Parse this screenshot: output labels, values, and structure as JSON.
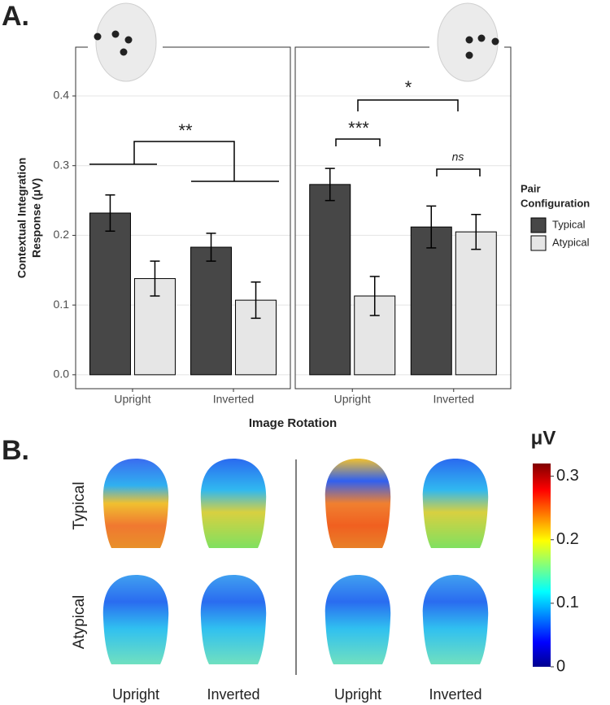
{
  "panel_a": {
    "label": "A.",
    "xlabel": "Image Rotation",
    "ylabel": [
      "Contextual Integration",
      "Response (μV)"
    ],
    "legend_title": [
      "Pair",
      "Configuration"
    ]
  },
  "chart_data": [
    {
      "type": "bar",
      "categories": [
        "Upright",
        "Inverted"
      ],
      "series": [
        {
          "name": "Typical",
          "color": "#474747",
          "values": [
            0.232,
            0.183
          ],
          "errors": [
            0.026,
            0.02
          ]
        },
        {
          "name": "Atypical",
          "color": "#e6e6e6",
          "values": [
            0.138,
            0.107
          ],
          "errors": [
            0.025,
            0.026
          ]
        }
      ],
      "ylim": [
        -0.02,
        0.47
      ],
      "yticks": [
        {
          "value": 0,
          "label": "0.0"
        },
        0.1,
        0.2,
        0.3,
        0.4
      ],
      "grid": true,
      "annotations": [
        "**"
      ]
    },
    {
      "type": "bar",
      "categories": [
        "Upright",
        "Inverted"
      ],
      "series": [
        {
          "name": "Typical",
          "color": "#474747",
          "values": [
            0.273,
            0.212
          ],
          "errors": [
            0.023,
            0.03
          ]
        },
        {
          "name": "Atypical",
          "color": "#e6e6e6",
          "values": [
            0.113,
            0.205
          ],
          "errors": [
            0.028,
            0.025
          ]
        }
      ],
      "ylim": [
        -0.02,
        0.47
      ],
      "grid": true,
      "annotations": [
        "***",
        "*",
        "ns"
      ]
    }
  ],
  "panel_b": {
    "label": "B.",
    "rows": [
      "Typical",
      "Atypical"
    ],
    "columns": [
      "Upright",
      "Inverted",
      "Upright",
      "Inverted"
    ],
    "colorbar": {
      "title": "μV",
      "lim": [
        0,
        0.32
      ],
      "ticks": [
        0,
        0.1,
        0.2,
        0.3
      ]
    }
  }
}
